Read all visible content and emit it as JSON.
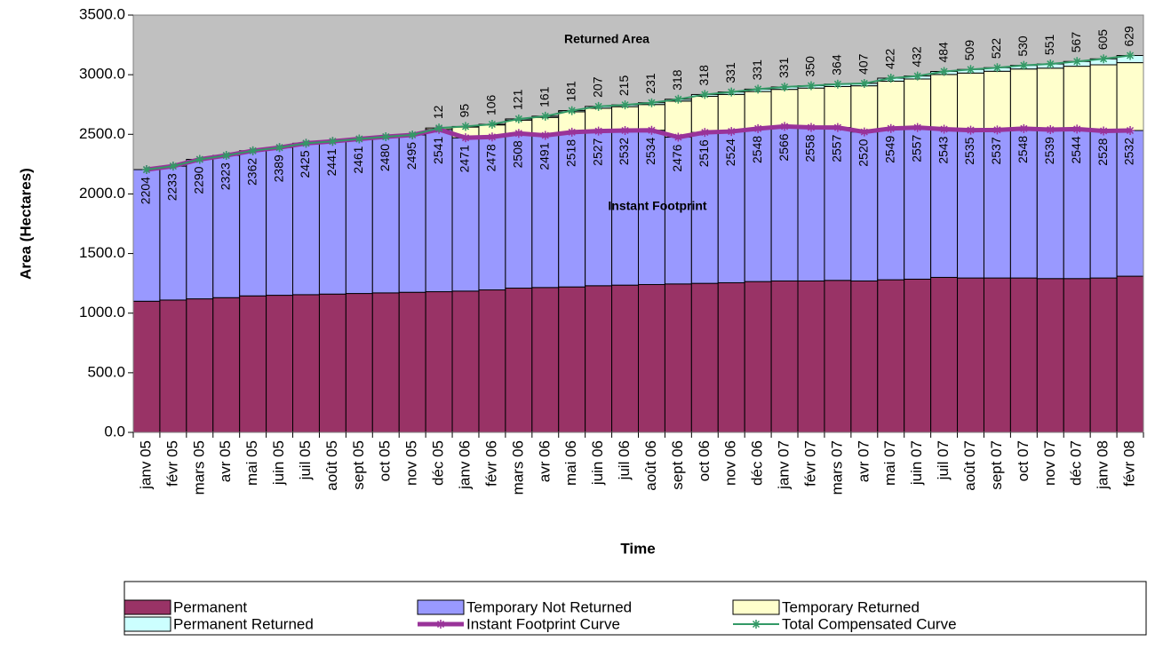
{
  "chart_data": {
    "type": "bar",
    "y_label": "Area (Hectares)",
    "x_label": "Time",
    "annotations": [
      "Returned Area",
      "Instant Footprint"
    ],
    "background": "#c0c0c0",
    "categories": [
      "janv 05",
      "févr 05",
      "mars 05",
      "avr 05",
      "mai 05",
      "juin 05",
      "juil 05",
      "août 05",
      "sept 05",
      "oct 05",
      "nov 05",
      "déc 05",
      "janv 06",
      "févr 06",
      "mars 06",
      "avr 06",
      "mai 06",
      "juin 06",
      "juil 06",
      "août 06",
      "sept 06",
      "oct 06",
      "nov 06",
      "déc 06",
      "janv 07",
      "févr 07",
      "mars 07",
      "avr 07",
      "mai 07",
      "juin 07",
      "juil 07",
      "août 07",
      "sept 07",
      "oct 07",
      "nov 07",
      "déc 07",
      "janv 08",
      "févr 08"
    ],
    "ylim": [
      0,
      3500
    ],
    "yticks": [
      {
        "value": 0,
        "label": "0.0"
      },
      {
        "value": 500,
        "label": "500.0"
      },
      {
        "value": 1000,
        "label": "1000.0"
      },
      {
        "value": 1500,
        "label": "1500.0"
      },
      {
        "value": 2000,
        "label": "2000.0"
      },
      {
        "value": 2500,
        "label": "2500.0"
      },
      {
        "value": 3000,
        "label": "3000.0"
      },
      {
        "value": 3500,
        "label": "3500.0"
      }
    ],
    "returned_values": [
      null,
      null,
      null,
      null,
      null,
      null,
      null,
      null,
      null,
      null,
      null,
      12,
      95,
      106,
      121,
      161,
      181,
      207,
      215,
      231,
      318,
      318,
      331,
      331,
      331,
      350,
      364,
      407,
      422,
      432,
      484,
      509,
      522,
      530,
      551,
      567,
      605,
      629
    ],
    "series": [
      {
        "name": "Permanent",
        "type": "bar",
        "color": "#993366",
        "values": [
          1100,
          1110,
          1120,
          1130,
          1145,
          1150,
          1155,
          1160,
          1165,
          1170,
          1175,
          1180,
          1185,
          1195,
          1210,
          1215,
          1220,
          1230,
          1235,
          1240,
          1245,
          1250,
          1255,
          1265,
          1270,
          1270,
          1275,
          1270,
          1280,
          1285,
          1300,
          1295,
          1295,
          1295,
          1290,
          1290,
          1295,
          1310
        ]
      },
      {
        "name": "Temporary Not Returned",
        "type": "bar",
        "color": "#9999ff",
        "values": [
          1104,
          1123,
          1170,
          1193,
          1217,
          1239,
          1270,
          1281,
          1296,
          1310,
          1320,
          1361,
          1286,
          1283,
          1298,
          1276,
          1298,
          1297,
          1297,
          1294,
          1231,
          1266,
          1269,
          1283,
          1296,
          1288,
          1282,
          1250,
          1269,
          1272,
          1243,
          1240,
          1242,
          1253,
          1249,
          1254,
          1233,
          1222
        ]
      },
      {
        "name": "Temporary Returned",
        "type": "bar",
        "color": "#ffffcc",
        "values": [
          0,
          0,
          0,
          0,
          0,
          0,
          0,
          0,
          0,
          0,
          0,
          12,
          90,
          101,
          111,
          151,
          171,
          192,
          200,
          216,
          303,
          303,
          311,
          311,
          311,
          330,
          344,
          387,
          397,
          407,
          459,
          479,
          492,
          500,
          516,
          527,
          555,
          569
        ]
      },
      {
        "name": "Permanent Returned",
        "type": "bar",
        "color": "#ccffff",
        "values": [
          0,
          0,
          0,
          0,
          0,
          0,
          0,
          0,
          0,
          0,
          0,
          0,
          5,
          5,
          10,
          10,
          10,
          15,
          15,
          15,
          15,
          15,
          20,
          20,
          20,
          20,
          20,
          20,
          25,
          25,
          25,
          30,
          30,
          30,
          35,
          40,
          50,
          60
        ]
      },
      {
        "name": "Instant Footprint Curve",
        "type": "line",
        "color": "#993399",
        "width": 5,
        "values": [
          2204,
          2233,
          2290,
          2323,
          2362,
          2389,
          2425,
          2441,
          2461,
          2480,
          2495,
          2541,
          2471,
          2478,
          2508,
          2491,
          2518,
          2527,
          2532,
          2534,
          2476,
          2516,
          2524,
          2548,
          2566,
          2558,
          2557,
          2520,
          2549,
          2557,
          2543,
          2535,
          2537,
          2548,
          2539,
          2544,
          2528,
          2532
        ]
      },
      {
        "name": "Total Compensated Curve",
        "type": "line",
        "color": "#339966",
        "width": 2,
        "values": [
          2204,
          2233,
          2290,
          2323,
          2362,
          2389,
          2425,
          2441,
          2461,
          2480,
          2495,
          2553,
          2566,
          2584,
          2629,
          2652,
          2699,
          2734,
          2747,
          2765,
          2794,
          2834,
          2855,
          2879,
          2897,
          2908,
          2921,
          2927,
          2971,
          2989,
          3027,
          3044,
          3059,
          3078,
          3090,
          3111,
          3133,
          3161
        ]
      }
    ]
  }
}
